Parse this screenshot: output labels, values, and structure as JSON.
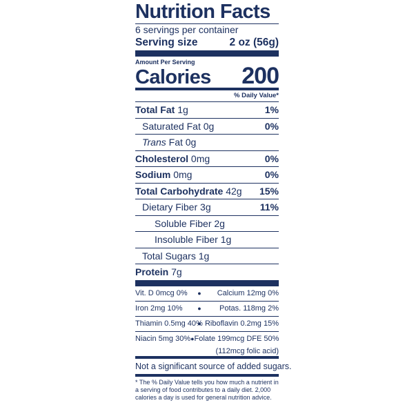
{
  "title": "Nutrition Facts",
  "servings_per_container": "6 servings per container",
  "serving_size": {
    "label": "Serving size",
    "value": "2 oz (56g)"
  },
  "amount_per_serving": "Amount Per Serving",
  "calories": {
    "label": "Calories",
    "value": "200"
  },
  "daily_value_header": "% Daily Value*",
  "nutrients": [
    {
      "label": "Total Fat",
      "amount": "1g",
      "dv": "1%"
    },
    {
      "label": "Saturated Fat",
      "amount": "0g",
      "dv": "0%"
    },
    {
      "label": "Trans",
      "amount": "Fat 0g",
      "dv": ""
    },
    {
      "label": "Cholesterol",
      "amount": "0mg",
      "dv": "0%"
    },
    {
      "label": "Sodium",
      "amount": "0mg",
      "dv": "0%"
    },
    {
      "label": "Total Carbohydrate",
      "amount": "42g",
      "dv": "15%"
    },
    {
      "label": "Dietary Fiber",
      "amount": "3g",
      "dv": "11%"
    },
    {
      "label": "Soluble Fiber",
      "amount": "2g",
      "dv": ""
    },
    {
      "label": "Insoluble Fiber",
      "amount": "1g",
      "dv": ""
    },
    {
      "label": "Total Sugars",
      "amount": "1g",
      "dv": ""
    },
    {
      "label": "Protein",
      "amount": "7g",
      "dv": ""
    }
  ],
  "vitamins": [
    {
      "left": "Vit. D 0mcg 0%",
      "right": "Calcium 12mg 0%"
    },
    {
      "left": "Iron 2mg 10%",
      "right": "Potas. 118mg 2%"
    },
    {
      "left": "Thiamin 0.5mg 40%",
      "right": "Riboflavin 0.2mg 15%"
    },
    {
      "left": "Niacin 5mg 30%",
      "right": "Folate 199mcg DFE 50%"
    }
  ],
  "vitamin_dot": "●",
  "folate_note": "(112mcg folic acid)",
  "added_sugars_note": "Not a significant source of added sugars.",
  "footnote": "* The % Daily Value tells you how much a nutrient in a serving of food contributes to a daily diet. 2,000 calories a day is used for general nutrition advice."
}
